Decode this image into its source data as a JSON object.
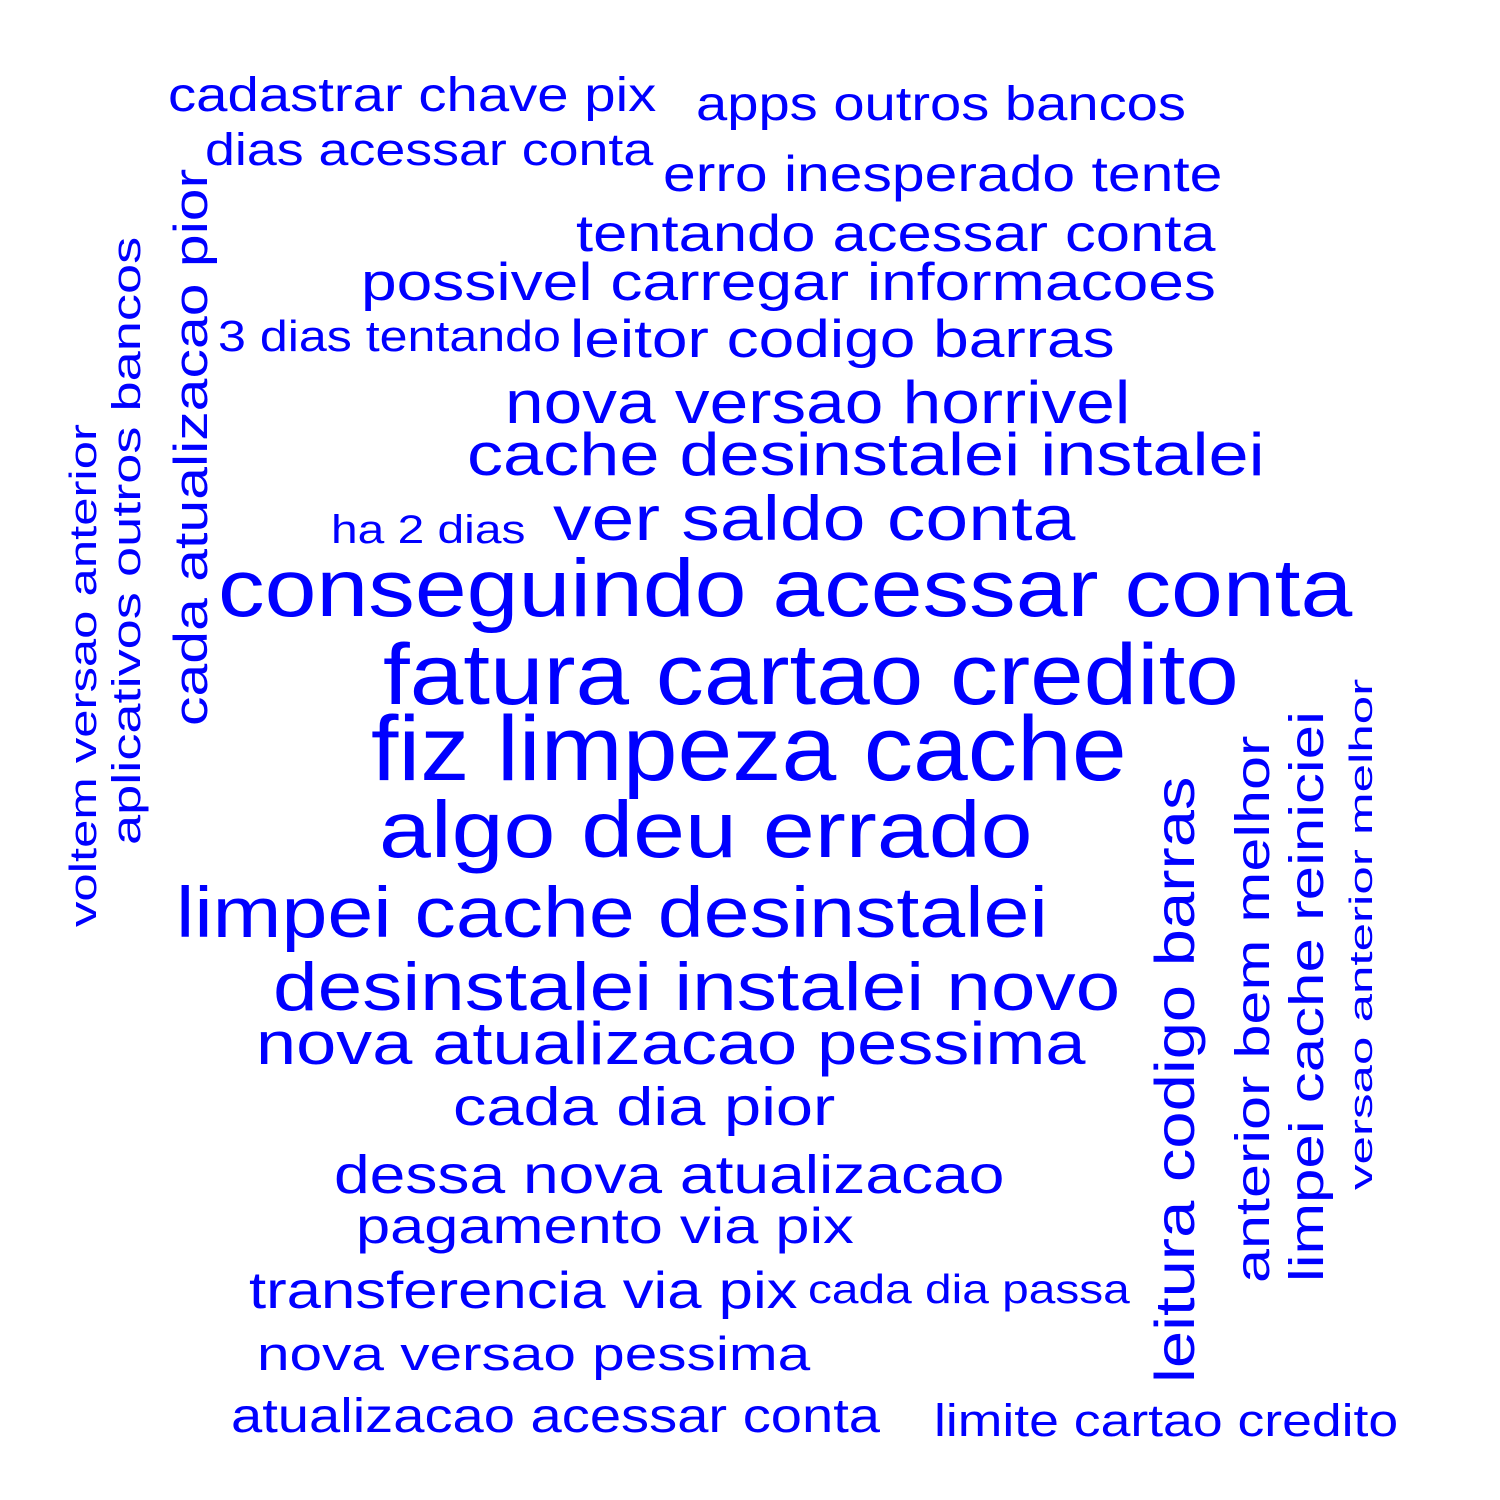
{
  "word_color": "#0000ff",
  "background_color": "#ffffff",
  "phrases": [
    {
      "text": "conseguindo acessar conta",
      "rotated": false
    },
    {
      "text": "fatura cartao credito",
      "rotated": false
    },
    {
      "text": "fiz limpeza cache",
      "rotated": false
    },
    {
      "text": "algo deu errado",
      "rotated": false
    },
    {
      "text": "limpei cache desinstalei",
      "rotated": false
    },
    {
      "text": "desinstalei instalei novo",
      "rotated": false
    },
    {
      "text": "nova atualizacao pessima",
      "rotated": false
    },
    {
      "text": "ver saldo conta",
      "rotated": false
    },
    {
      "text": "nova versao horrivel",
      "rotated": false
    },
    {
      "text": "cache desinstalei instalei",
      "rotated": false
    },
    {
      "text": "leitura codigo barras",
      "rotated": true
    },
    {
      "text": "possivel carregar informacoes",
      "rotated": false
    },
    {
      "text": "tentando acessar conta",
      "rotated": false
    },
    {
      "text": "leitor codigo barras",
      "rotated": false
    },
    {
      "text": "cada atualizacao pior",
      "rotated": true
    },
    {
      "text": "cada dia pior",
      "rotated": false
    },
    {
      "text": "dessa nova atualizacao",
      "rotated": false
    },
    {
      "text": "anterior bem melhor",
      "rotated": true
    },
    {
      "text": "limpei cache reiniciei",
      "rotated": true
    },
    {
      "text": "transferencia via pix",
      "rotated": false
    },
    {
      "text": "erro inesperado tente",
      "rotated": false
    },
    {
      "text": "nova versao pessima",
      "rotated": false
    },
    {
      "text": "atualizacao acessar conta",
      "rotated": false
    },
    {
      "text": "pagamento via pix",
      "rotated": false
    },
    {
      "text": "cadastrar chave pix",
      "rotated": false
    },
    {
      "text": "apps outros bancos",
      "rotated": false
    },
    {
      "text": "aplicativos outros bancos",
      "rotated": true
    },
    {
      "text": "limite cartao credito",
      "rotated": false
    },
    {
      "text": "dias acessar conta",
      "rotated": false
    },
    {
      "text": "voltem versao anterior",
      "rotated": true
    },
    {
      "text": "versao anterior melhor",
      "rotated": true
    },
    {
      "text": "3 dias tentando",
      "rotated": false
    },
    {
      "text": "ha 2 dias",
      "rotated": false
    },
    {
      "text": "cada dia passa",
      "rotated": false
    }
  ]
}
